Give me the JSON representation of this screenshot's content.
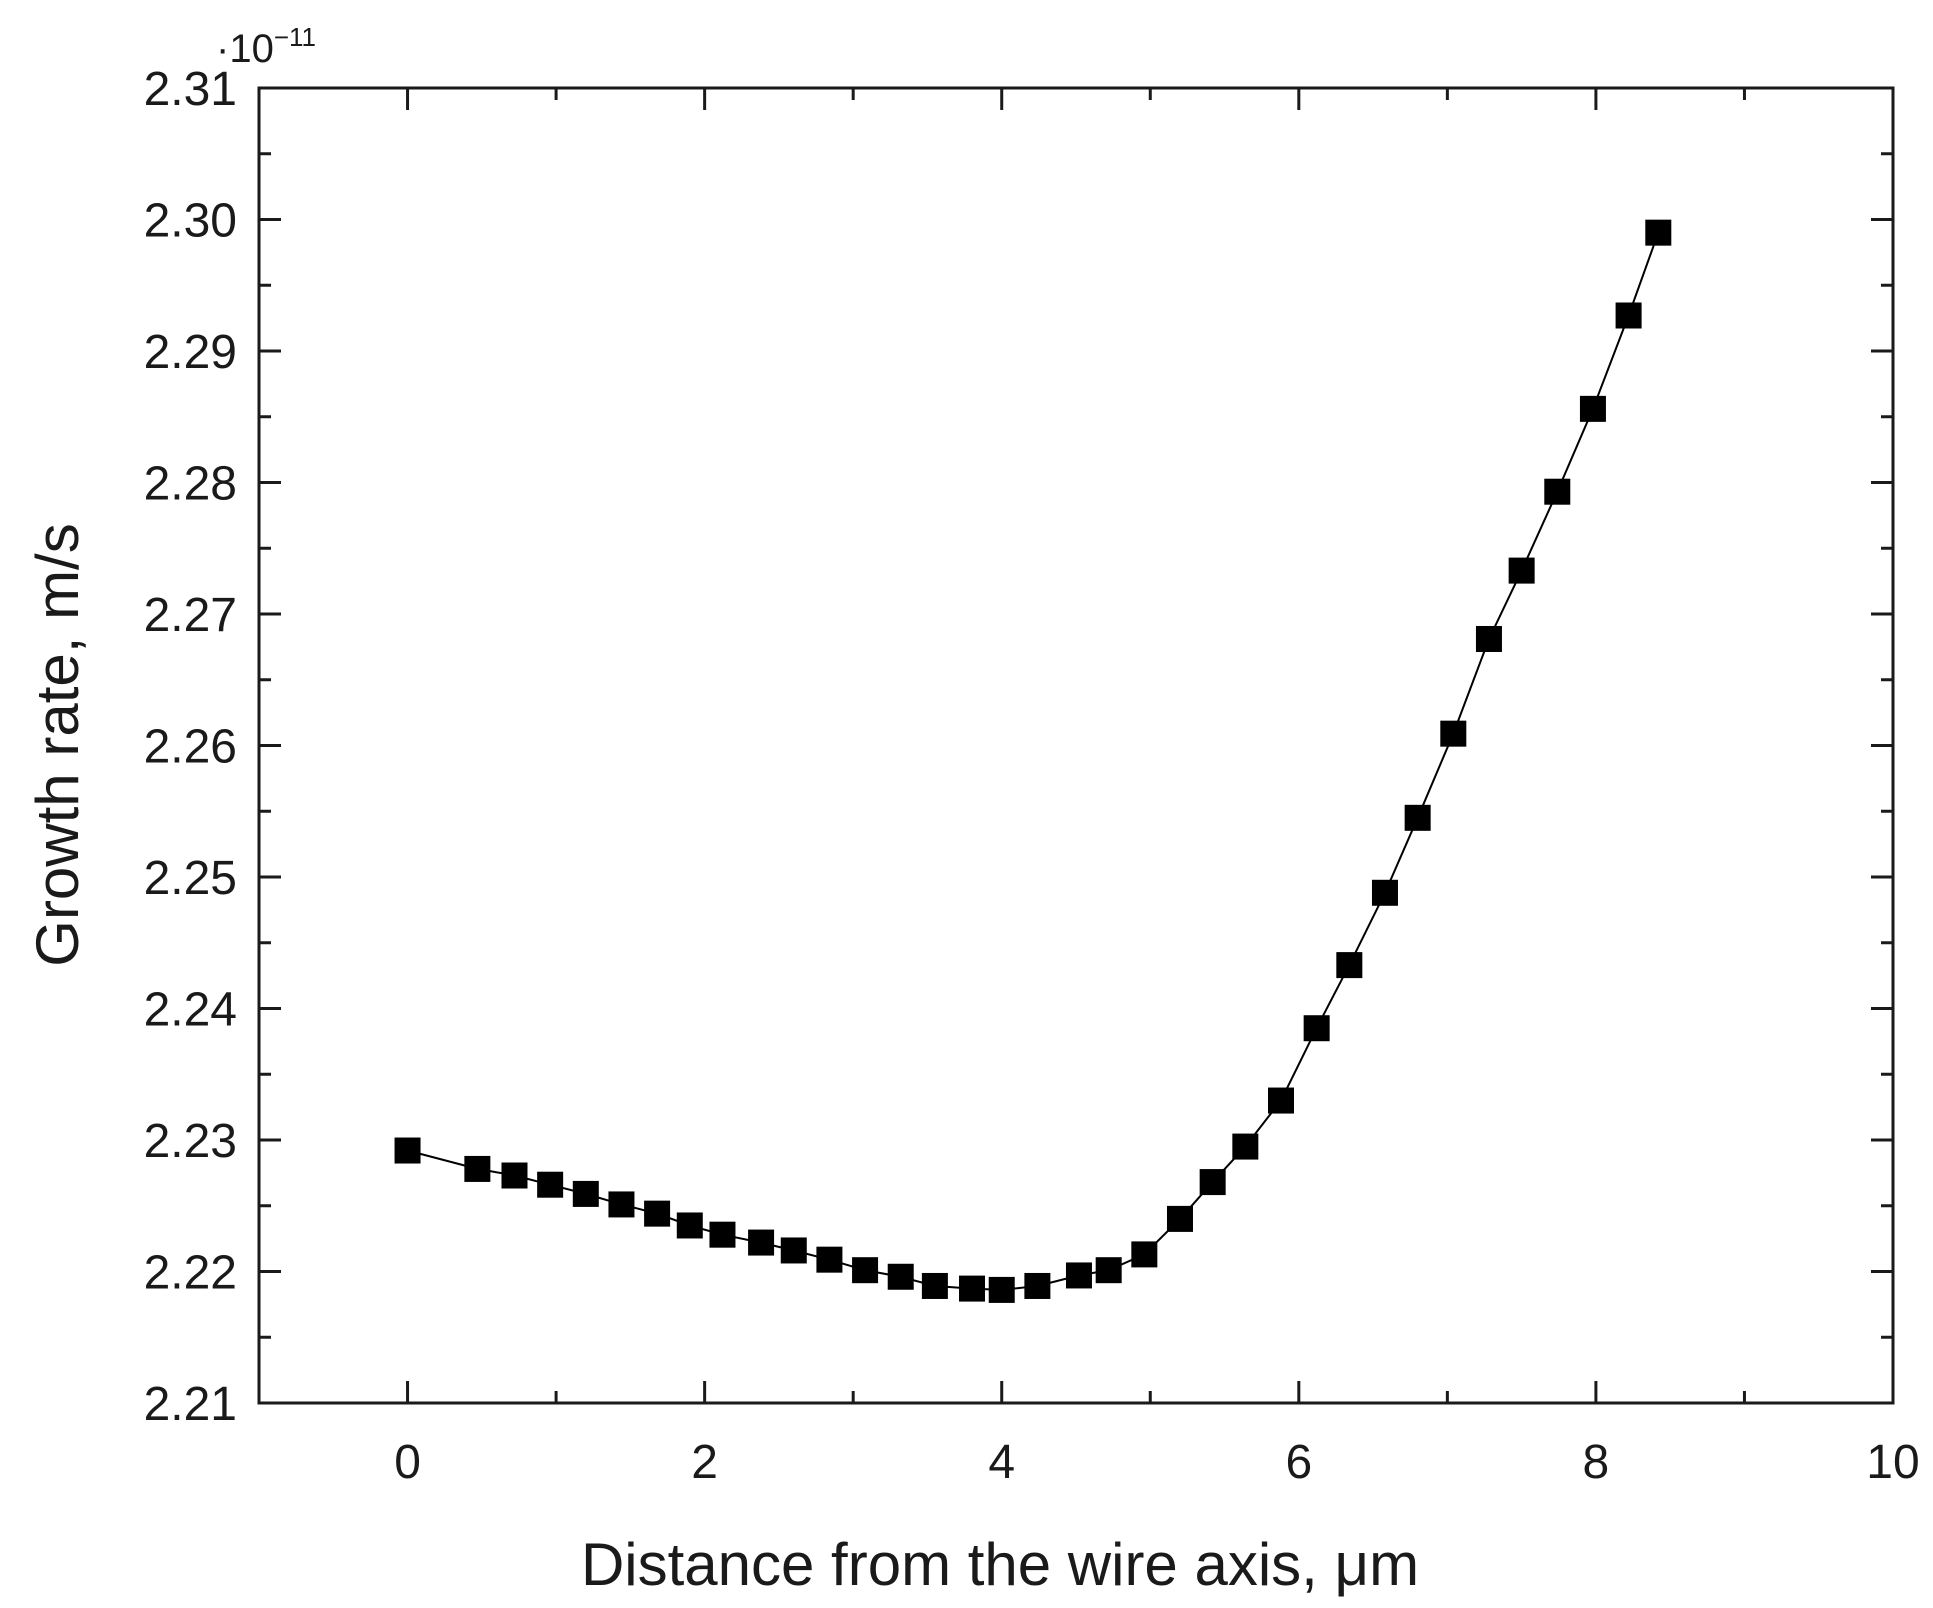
{
  "chart_data": {
    "type": "line",
    "title": "",
    "xlabel": "Distance from the wire axis, μm",
    "ylabel": "Growth rate, m/s",
    "y_multiplier": {
      "prefix": "·10",
      "exponent": "−11"
    },
    "xlim": [
      -1,
      10
    ],
    "ylim": [
      2.21,
      2.31
    ],
    "x_ticks": [
      0,
      2,
      4,
      6,
      8,
      10
    ],
    "x_tick_labels": [
      "0",
      "2",
      "4",
      "6",
      "8",
      "10"
    ],
    "y_ticks": [
      2.21,
      2.22,
      2.23,
      2.24,
      2.25,
      2.26,
      2.27,
      2.28,
      2.29,
      2.3,
      2.31
    ],
    "y_tick_labels": [
      "2.21",
      "2.22",
      "2.23",
      "2.24",
      "2.25",
      "2.26",
      "2.27",
      "2.28",
      "2.29",
      "2.30",
      "2.31"
    ],
    "grid": false,
    "marker": "square",
    "line_color": "#000000",
    "marker_color": "#000000",
    "series": [
      {
        "x": [
          0,
          0.47,
          0.72,
          0.96,
          1.2,
          1.44,
          1.68,
          1.9,
          2.12,
          2.38,
          2.6,
          2.84,
          3.08,
          3.32,
          3.55,
          3.8,
          4.0,
          4.24,
          4.52,
          4.72,
          4.96,
          5.2,
          5.42,
          5.64,
          5.88,
          6.12,
          6.34,
          6.58,
          6.8,
          7.04,
          7.28,
          7.5,
          7.74,
          7.98,
          8.22,
          8.42
        ],
        "y": [
          2.2292,
          2.2278,
          2.2273,
          2.2266,
          2.2259,
          2.2251,
          2.2244,
          2.2235,
          2.2228,
          2.2222,
          2.2216,
          2.2209,
          2.2201,
          2.2196,
          2.2189,
          2.2187,
          2.2186,
          2.2189,
          2.2197,
          2.2201,
          2.2213,
          2.224,
          2.2268,
          2.2295,
          2.233,
          2.2385,
          2.2433,
          2.2488,
          2.2545,
          2.2609,
          2.2681,
          2.2733,
          2.2793,
          2.2856,
          2.2927,
          2.299
        ]
      }
    ]
  }
}
